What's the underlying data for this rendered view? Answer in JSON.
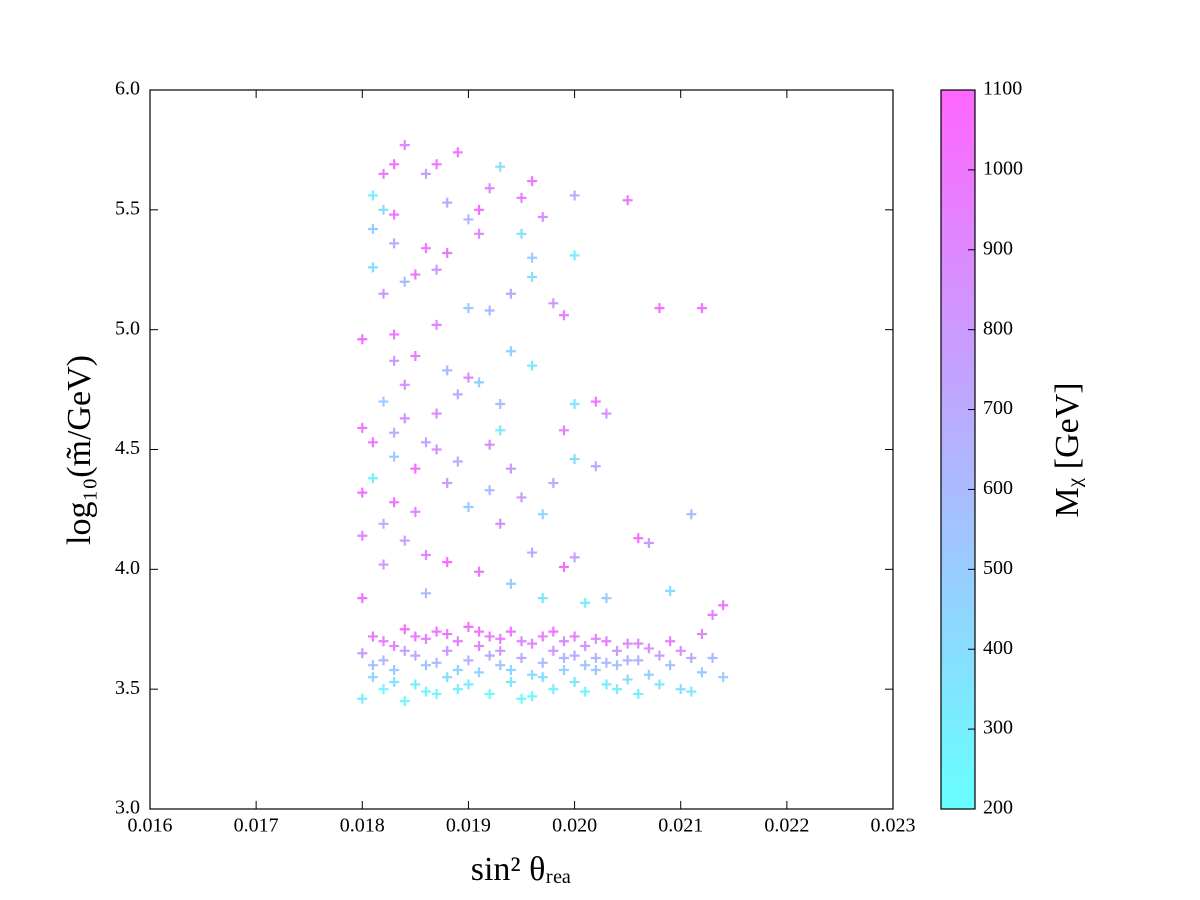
{
  "chart_data": {
    "type": "scatter",
    "x_label": "sin² θᵣₑₐ",
    "y_label": "log₁₀(m̃/GeV)",
    "color_label": "Mᵪ [GeV]",
    "colormap": "cool",
    "marker": "+",
    "xlim": [
      0.016,
      0.023
    ],
    "xticks": [
      0.016,
      0.017,
      0.018,
      0.019,
      {
        "value": 0.02,
        "label": "0.020"
      },
      0.021,
      0.022,
      0.023
    ],
    "ylim": [
      3.0,
      6.0
    ],
    "yticks": [
      {
        "value": 3,
        "label": "3.0"
      },
      3.5,
      {
        "value": 4,
        "label": "4.0"
      },
      4.5,
      {
        "value": 5,
        "label": "5.0"
      },
      5.5,
      {
        "value": 6,
        "label": "6.0"
      }
    ],
    "clim": [
      200,
      1100
    ],
    "cticks": [
      200,
      300,
      400,
      500,
      600,
      700,
      800,
      900,
      1000,
      1100
    ],
    "x": [
      0.0184,
      0.0189,
      0.0187,
      0.0183,
      0.0182,
      0.0193,
      0.0186,
      0.0196,
      0.0192,
      0.02,
      0.0181,
      0.0205,
      0.0188,
      0.0195,
      0.0191,
      0.0182,
      0.0197,
      0.0183,
      0.019,
      0.0181,
      0.0195,
      0.0191,
      0.0186,
      0.0183,
      0.02,
      0.0196,
      0.0188,
      0.0181,
      0.0185,
      0.0187,
      0.0196,
      0.0184,
      0.0182,
      0.0194,
      0.0198,
      0.0208,
      0.0212,
      0.019,
      0.0192,
      0.0199,
      0.018,
      0.0187,
      0.0183,
      0.0185,
      0.0183,
      0.0194,
      0.0196,
      0.0188,
      0.019,
      0.0184,
      0.0191,
      0.0182,
      0.0189,
      0.0193,
      0.0202,
      0.02,
      0.0187,
      0.0184,
      0.0203,
      0.0193,
      0.0183,
      0.018,
      0.0186,
      0.0199,
      0.0181,
      0.0192,
      0.0187,
      0.0183,
      0.02,
      0.0185,
      0.0189,
      0.0202,
      0.0194,
      0.0181,
      0.0188,
      0.0192,
      0.0198,
      0.0183,
      0.0185,
      0.018,
      0.0195,
      0.019,
      0.0197,
      0.0211,
      0.0182,
      0.018,
      0.0193,
      0.0206,
      0.0207,
      0.0184,
      0.0186,
      0.0188,
      0.0191,
      0.0196,
      0.02,
      0.0199,
      0.0182,
      0.0194,
      0.0209,
      0.0203,
      0.018,
      0.0213,
      0.0214,
      0.0186,
      0.0197,
      0.0201,
      0.018,
      0.0181,
      0.0181,
      0.0182,
      0.0182,
      0.0183,
      0.0183,
      0.0184,
      0.0184,
      0.0185,
      0.0185,
      0.0186,
      0.0186,
      0.0187,
      0.0187,
      0.0188,
      0.0188,
      0.0189,
      0.0189,
      0.019,
      0.019,
      0.0191,
      0.0191,
      0.0192,
      0.0192,
      0.0193,
      0.0193,
      0.0194,
      0.0194,
      0.0195,
      0.0195,
      0.0196,
      0.0196,
      0.0197,
      0.0197,
      0.0198,
      0.0198,
      0.0199,
      0.0199,
      0.02,
      0.02,
      0.0201,
      0.0201,
      0.0202,
      0.0202,
      0.0203,
      0.0203,
      0.0204,
      0.0204,
      0.0205,
      0.0205,
      0.0206,
      0.0206,
      0.0207,
      0.0207,
      0.0208,
      0.0208,
      0.0209,
      0.0209,
      0.021,
      0.021,
      0.0211,
      0.0211,
      0.0212,
      0.0212,
      0.0213,
      0.0214,
      0.018,
      0.0181,
      0.0182,
      0.0183,
      0.0184,
      0.0185,
      0.0186,
      0.0187,
      0.0188,
      0.0189,
      0.019,
      0.0191,
      0.0192,
      0.0193,
      0.0194,
      0.0195,
      0.0196,
      0.0197,
      0.0198,
      0.0199,
      0.02,
      0.0201,
      0.0202,
      0.0203,
      0.0204,
      0.0205,
      0.0206
    ],
    "values": [
      5.77,
      5.74,
      5.69,
      5.69,
      5.65,
      5.68,
      5.65,
      5.62,
      5.59,
      5.56,
      5.56,
      5.54,
      5.53,
      5.55,
      5.5,
      5.5,
      5.47,
      5.48,
      5.46,
      5.42,
      5.4,
      5.4,
      5.34,
      5.36,
      5.31,
      5.3,
      5.32,
      5.26,
      5.23,
      5.25,
      5.22,
      5.2,
      5.15,
      5.15,
      5.11,
      5.09,
      5.09,
      5.09,
      5.08,
      5.06,
      4.96,
      5.02,
      4.98,
      4.89,
      4.87,
      4.91,
      4.85,
      4.83,
      4.8,
      4.77,
      4.78,
      4.7,
      4.73,
      4.69,
      4.7,
      4.69,
      4.65,
      4.63,
      4.65,
      4.58,
      4.57,
      4.59,
      4.53,
      4.58,
      4.53,
      4.52,
      4.5,
      4.47,
      4.46,
      4.42,
      4.45,
      4.43,
      4.42,
      4.38,
      4.36,
      4.33,
      4.36,
      4.28,
      4.24,
      4.32,
      4.3,
      4.26,
      4.23,
      4.23,
      4.19,
      4.14,
      4.19,
      4.13,
      4.11,
      4.12,
      4.06,
      4.03,
      3.99,
      4.07,
      4.05,
      4.01,
      4.02,
      3.94,
      3.91,
      3.88,
      3.88,
      3.81,
      3.85,
      3.9,
      3.88,
      3.86,
      3.46,
      3.55,
      3.72,
      3.62,
      3.5,
      3.68,
      3.58,
      3.75,
      3.45,
      3.64,
      3.52,
      3.71,
      3.6,
      3.48,
      3.74,
      3.66,
      3.55,
      3.7,
      3.5,
      3.62,
      3.76,
      3.57,
      3.68,
      3.48,
      3.72,
      3.6,
      3.66,
      3.53,
      3.74,
      3.63,
      3.46,
      3.69,
      3.56,
      3.61,
      3.72,
      3.5,
      3.66,
      3.58,
      3.7,
      3.53,
      3.64,
      3.49,
      3.68,
      3.58,
      3.63,
      3.52,
      3.7,
      3.6,
      3.66,
      3.54,
      3.69,
      3.48,
      3.62,
      3.67,
      3.56,
      3.64,
      3.52,
      3.7,
      3.6,
      3.66,
      3.5,
      3.63,
      3.49,
      3.57,
      3.73,
      3.63,
      3.55,
      3.65,
      3.6,
      3.7,
      3.53,
      3.66,
      3.72,
      3.49,
      3.61,
      3.73,
      3.58,
      3.52,
      3.74,
      3.64,
      3.71,
      3.58,
      3.7,
      3.47,
      3.55,
      3.74,
      3.63,
      3.72,
      3.6,
      3.71,
      3.61,
      3.5,
      3.62,
      3.69
    ],
    "color_values": [
      900,
      1000,
      1000,
      1050,
      950,
      400,
      750,
      1000,
      900,
      700,
      300,
      1000,
      700,
      950,
      1050,
      400,
      850,
      1000,
      650,
      500,
      400,
      900,
      1000,
      700,
      300,
      500,
      1000,
      400,
      1000,
      800,
      400,
      600,
      800,
      700,
      800,
      1050,
      1000,
      500,
      600,
      950,
      1050,
      900,
      1000,
      950,
      800,
      500,
      350,
      600,
      900,
      850,
      500,
      500,
      700,
      600,
      1000,
      350,
      900,
      850,
      850,
      350,
      650,
      1000,
      750,
      950,
      1000,
      900,
      850,
      500,
      400,
      1050,
      700,
      700,
      800,
      300,
      800,
      600,
      700,
      1000,
      900,
      1050,
      800,
      500,
      450,
      600,
      650,
      900,
      900,
      1050,
      800,
      750,
      900,
      1050,
      1000,
      700,
      750,
      1050,
      800,
      500,
      400,
      500,
      1000,
      950,
      1000,
      600,
      350,
      300,
      300,
      450,
      1000,
      600,
      250,
      900,
      500,
      1050,
      250,
      700,
      300,
      950,
      550,
      250,
      1000,
      800,
      400,
      950,
      300,
      650,
      1050,
      450,
      900,
      250,
      1000,
      550,
      800,
      350,
      1000,
      700,
      250,
      900,
      400,
      600,
      950,
      300,
      800,
      450,
      900,
      350,
      700,
      250,
      850,
      500,
      650,
      300,
      950,
      550,
      800,
      400,
      900,
      300,
      650,
      850,
      450,
      750,
      350,
      950,
      550,
      850,
      400,
      700,
      350,
      500,
      900,
      600,
      500,
      800,
      550,
      950,
      350,
      750,
      1000,
      250,
      600,
      1000,
      450,
      300,
      1000,
      700,
      950,
      450,
      900,
      250,
      400,
      1000,
      650,
      950,
      550,
      900,
      600,
      300,
      650,
      900
    ]
  }
}
